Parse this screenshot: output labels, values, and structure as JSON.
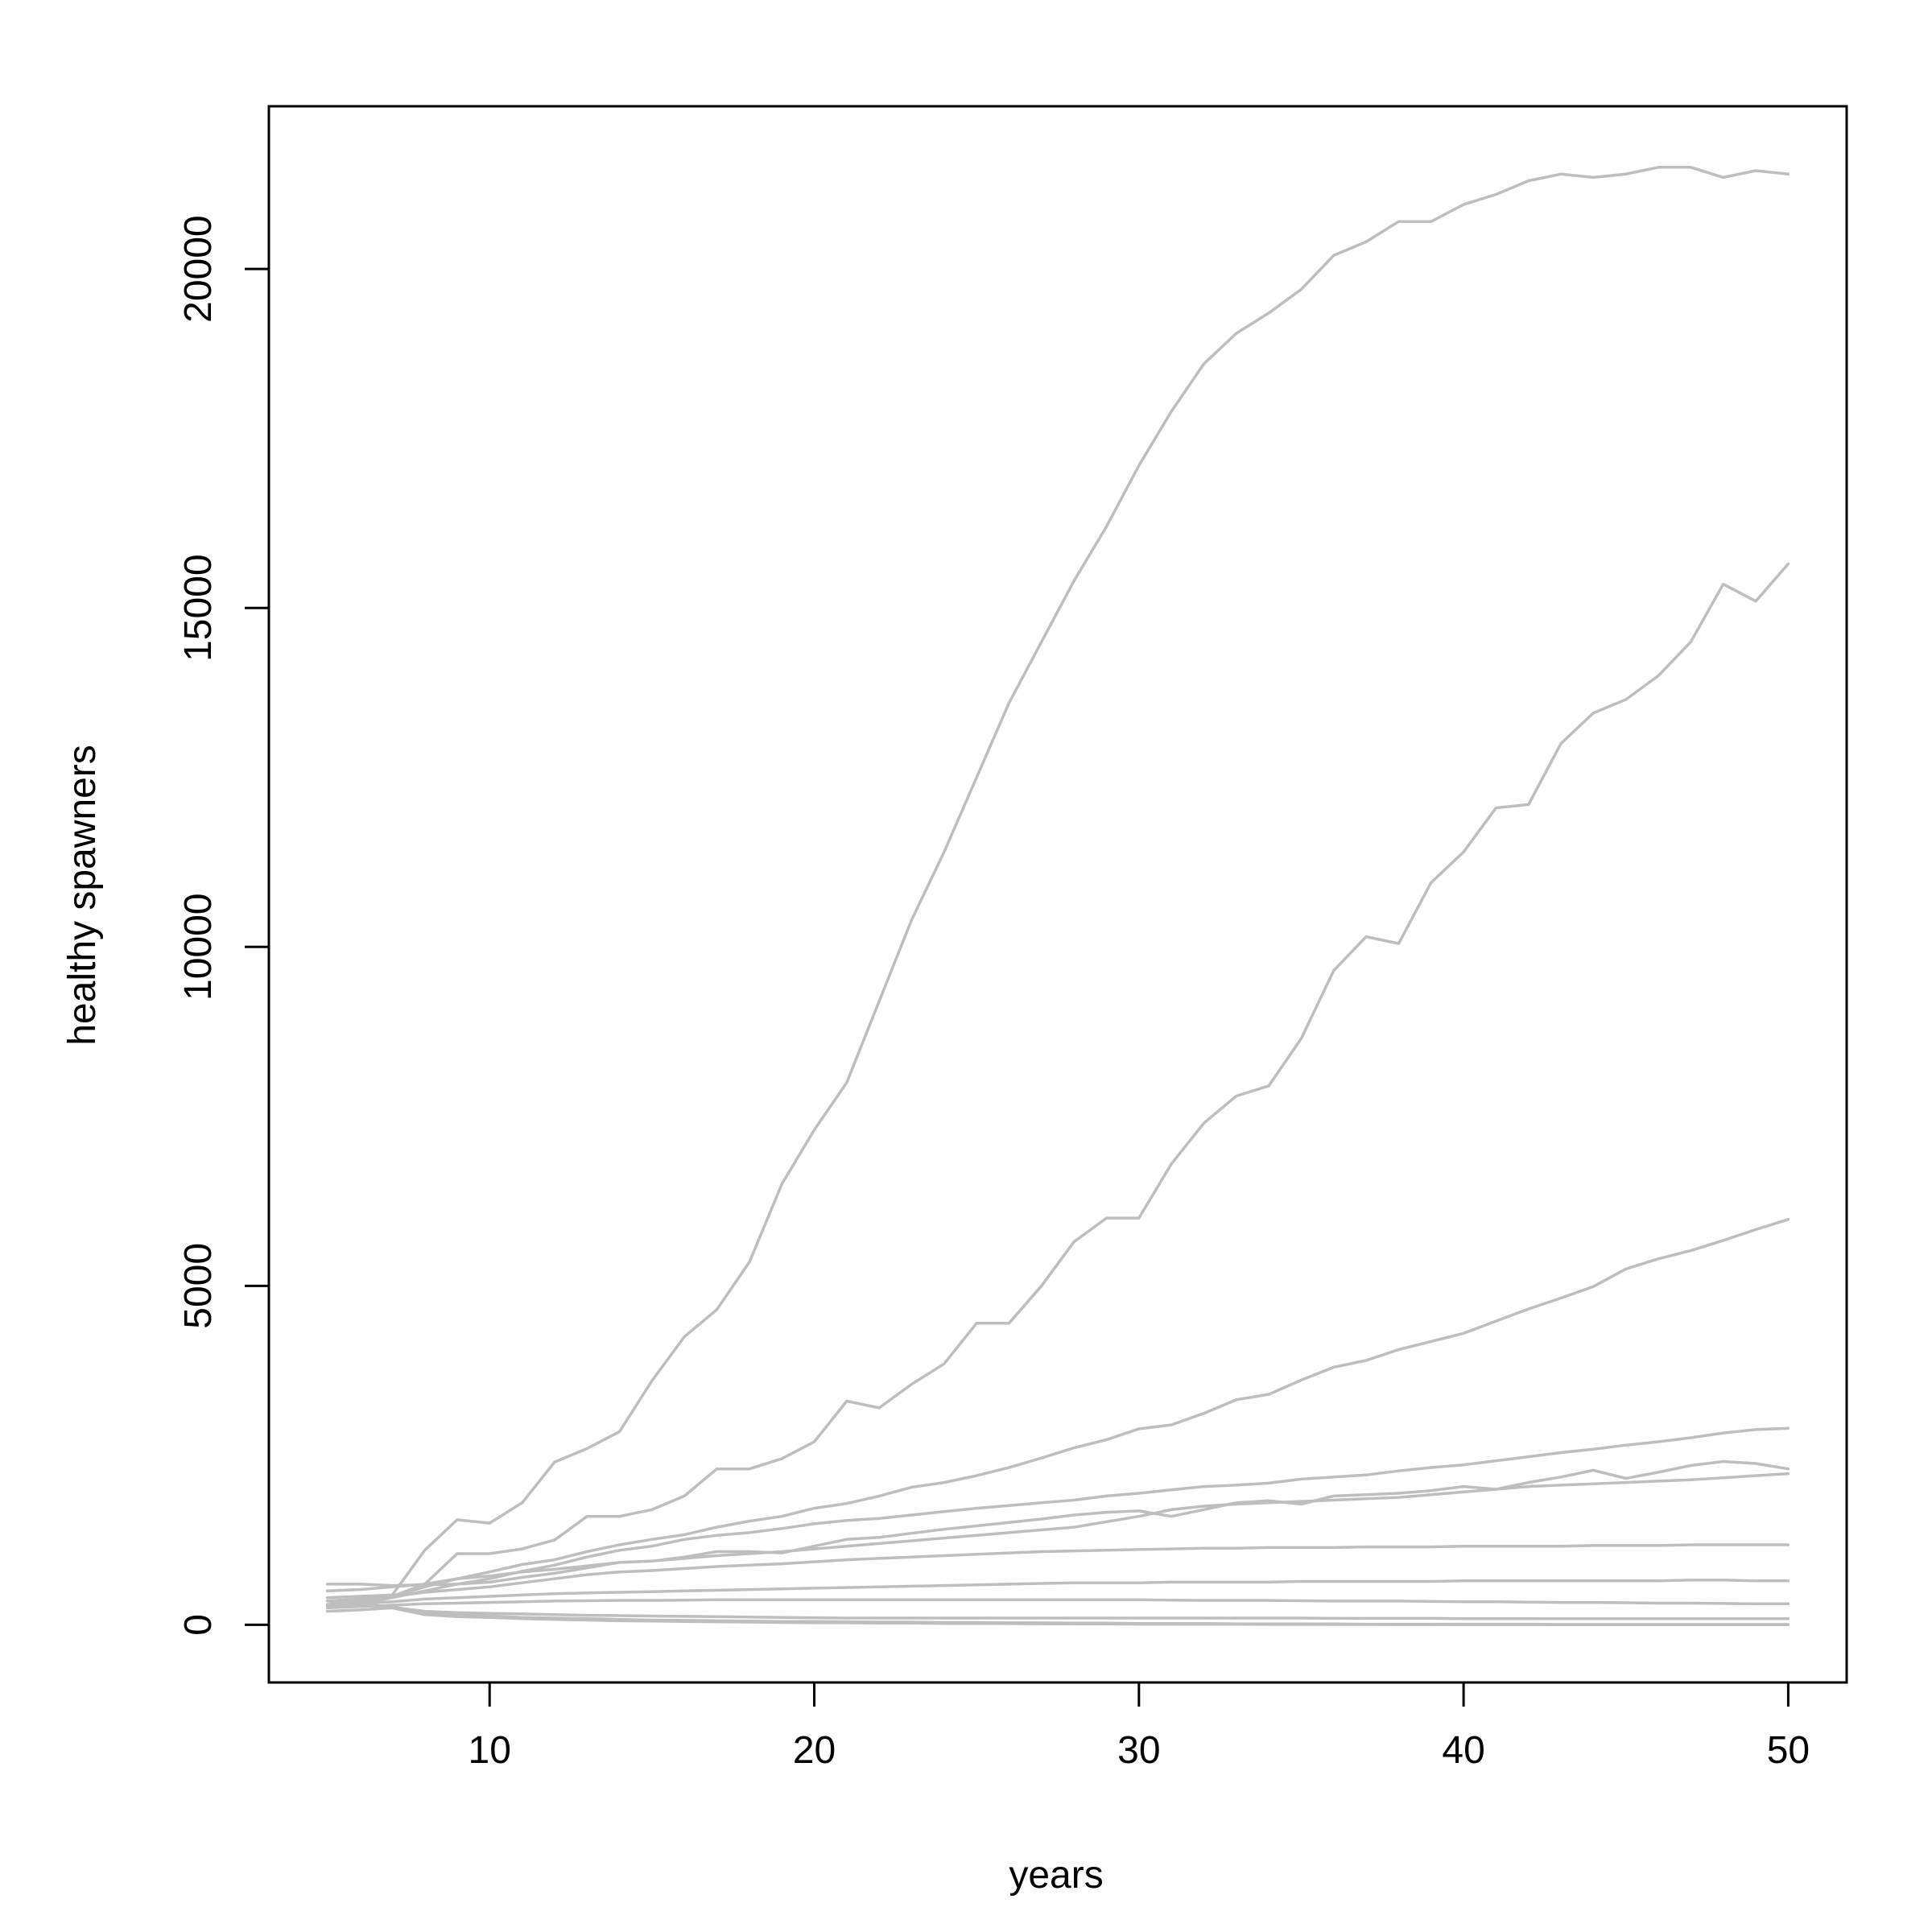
{
  "chart_data": {
    "type": "line",
    "title": "",
    "xlabel": "years",
    "ylabel": "healthy spawners",
    "xlim": [
      3.2,
      51.8
    ],
    "ylim": [
      -850,
      22400
    ],
    "xticks": [
      10,
      20,
      30,
      40,
      50
    ],
    "yticks": [
      0,
      5000,
      10000,
      15000,
      20000
    ],
    "xtick_labels": [
      "10",
      "20",
      "30",
      "40",
      "50"
    ],
    "ytick_labels": [
      "0",
      "5000",
      "10000",
      "15000",
      "20000"
    ],
    "grid": false,
    "legend": "none",
    "line_color": "#bebebe",
    "x": [
      5,
      6,
      7,
      8,
      9,
      10,
      11,
      12,
      13,
      14,
      15,
      16,
      17,
      18,
      19,
      20,
      21,
      22,
      23,
      24,
      25,
      26,
      27,
      28,
      29,
      30,
      31,
      32,
      33,
      34,
      35,
      36,
      37,
      38,
      39,
      40,
      41,
      42,
      43,
      44,
      45,
      46,
      47,
      48,
      49,
      50
    ],
    "series": [
      {
        "values": [
          400,
          420,
          440,
          1100,
          1550,
          1500,
          1800,
          2400,
          2600,
          2850,
          3600,
          4250,
          4650,
          5350,
          6500,
          7300,
          8000,
          9200,
          10400,
          11400,
          12500,
          13600,
          14500,
          15400,
          16200,
          17100,
          17900,
          18600,
          19050,
          19350,
          19700,
          20200,
          20400,
          20700,
          20700,
          20950,
          21100,
          21300,
          21400,
          21350,
          21400,
          21500,
          21500,
          21350,
          21450,
          21400
        ]
      },
      {
        "values": [
          350,
          380,
          420,
          600,
          1050,
          1050,
          1120,
          1250,
          1600,
          1600,
          1700,
          1900,
          2300,
          2300,
          2450,
          2700,
          3300,
          3200,
          3550,
          3850,
          4450,
          4450,
          5000,
          5650,
          6000,
          6000,
          6800,
          7400,
          7800,
          7950,
          8650,
          9650,
          10150,
          10050,
          10950,
          11400,
          12050,
          12100,
          13000,
          13450,
          13650,
          14000,
          14500,
          15350,
          15100,
          15650
        ]
      },
      {
        "values": [
          300,
          350,
          420,
          560,
          680,
          780,
          890,
          960,
          1080,
          1180,
          1260,
          1330,
          1440,
          1530,
          1600,
          1720,
          1790,
          1900,
          2030,
          2100,
          2200,
          2320,
          2460,
          2610,
          2730,
          2890,
          2950,
          3120,
          3320,
          3400,
          3610,
          3800,
          3900,
          4060,
          4180,
          4300,
          4480,
          4660,
          4820,
          4990,
          5250,
          5400,
          5520,
          5670,
          5830,
          5980
        ]
      },
      {
        "values": [
          280,
          320,
          400,
          500,
          600,
          680,
          790,
          880,
          1000,
          1100,
          1160,
          1260,
          1320,
          1360,
          1420,
          1490,
          1540,
          1570,
          1620,
          1670,
          1720,
          1760,
          1800,
          1840,
          1900,
          1940,
          1990,
          2040,
          2060,
          2090,
          2150,
          2180,
          2210,
          2270,
          2320,
          2360,
          2420,
          2480,
          2540,
          2590,
          2650,
          2700,
          2760,
          2830,
          2880,
          2900
        ]
      },
      {
        "values": [
          600,
          600,
          580,
          590,
          600,
          630,
          700,
          760,
          840,
          920,
          940,
          1000,
          1080,
          1080,
          1060,
          1160,
          1260,
          1290,
          1350,
          1410,
          1460,
          1510,
          1560,
          1620,
          1660,
          1680,
          1600,
          1700,
          1800,
          1830,
          1780,
          1900,
          1920,
          1940,
          1980,
          2040,
          2000,
          2100,
          2180,
          2280,
          2160,
          2250,
          2350,
          2410,
          2380,
          2300
        ]
      },
      {
        "values": [
          500,
          520,
          560,
          600,
          680,
          720,
          780,
          820,
          870,
          920,
          940,
          980,
          1020,
          1050,
          1080,
          1120,
          1160,
          1200,
          1240,
          1280,
          1320,
          1360,
          1400,
          1440,
          1520,
          1600,
          1700,
          1750,
          1780,
          1800,
          1820,
          1840,
          1860,
          1880,
          1920,
          1960,
          2000,
          2040,
          2060,
          2080,
          2100,
          2120,
          2140,
          2170,
          2200,
          2230
        ]
      },
      {
        "values": [
          350,
          380,
          420,
          480,
          520,
          560,
          620,
          680,
          740,
          780,
          800,
          830,
          860,
          880,
          900,
          930,
          960,
          980,
          1000,
          1020,
          1040,
          1060,
          1080,
          1090,
          1100,
          1110,
          1120,
          1130,
          1130,
          1140,
          1140,
          1140,
          1150,
          1150,
          1150,
          1160,
          1160,
          1160,
          1160,
          1170,
          1170,
          1170,
          1180,
          1180,
          1180,
          1180
        ]
      },
      {
        "values": [
          300,
          320,
          340,
          380,
          400,
          420,
          440,
          460,
          470,
          480,
          490,
          500,
          510,
          520,
          530,
          540,
          550,
          560,
          570,
          580,
          590,
          600,
          610,
          620,
          620,
          620,
          630,
          630,
          630,
          630,
          640,
          640,
          640,
          640,
          640,
          650,
          650,
          650,
          650,
          650,
          650,
          650,
          660,
          660,
          650,
          650
        ]
      },
      {
        "values": [
          250,
          270,
          290,
          310,
          320,
          330,
          340,
          350,
          355,
          360,
          360,
          365,
          370,
          370,
          370,
          370,
          370,
          370,
          370,
          370,
          370,
          370,
          370,
          370,
          370,
          370,
          365,
          360,
          360,
          360,
          355,
          350,
          350,
          350,
          345,
          340,
          340,
          335,
          330,
          330,
          325,
          320,
          320,
          315,
          310,
          310
        ]
      },
      {
        "values": [
          300,
          290,
          260,
          200,
          180,
          170,
          160,
          150,
          140,
          135,
          130,
          125,
          120,
          115,
          110,
          105,
          100,
          100,
          100,
          100,
          100,
          100,
          100,
          100,
          100,
          100,
          100,
          100,
          100,
          100,
          100,
          95,
          95,
          95,
          95,
          90,
          90,
          90,
          90,
          90,
          90,
          90,
          90,
          90,
          90,
          90
        ]
      },
      {
        "values": [
          350,
          320,
          260,
          170,
          150,
          130,
          110,
          100,
          90,
          80,
          70,
          65,
          60,
          55,
          50,
          50,
          45,
          40,
          40,
          35,
          35,
          30,
          30,
          25,
          25,
          20,
          20,
          20,
          15,
          15,
          15,
          15,
          10,
          10,
          10,
          10,
          10,
          10,
          5,
          5,
          5,
          5,
          5,
          5,
          5,
          5
        ]
      },
      {
        "values": [
          200,
          220,
          250,
          150,
          120,
          110,
          90,
          80,
          70,
          60,
          55,
          50,
          45,
          40,
          35,
          30,
          30,
          25,
          25,
          20,
          20,
          18,
          16,
          14,
          12,
          10,
          10,
          8,
          8,
          6,
          6,
          5,
          5,
          4,
          4,
          3,
          3,
          2,
          2,
          2,
          1,
          1,
          1,
          1,
          1,
          1
        ]
      }
    ]
  }
}
